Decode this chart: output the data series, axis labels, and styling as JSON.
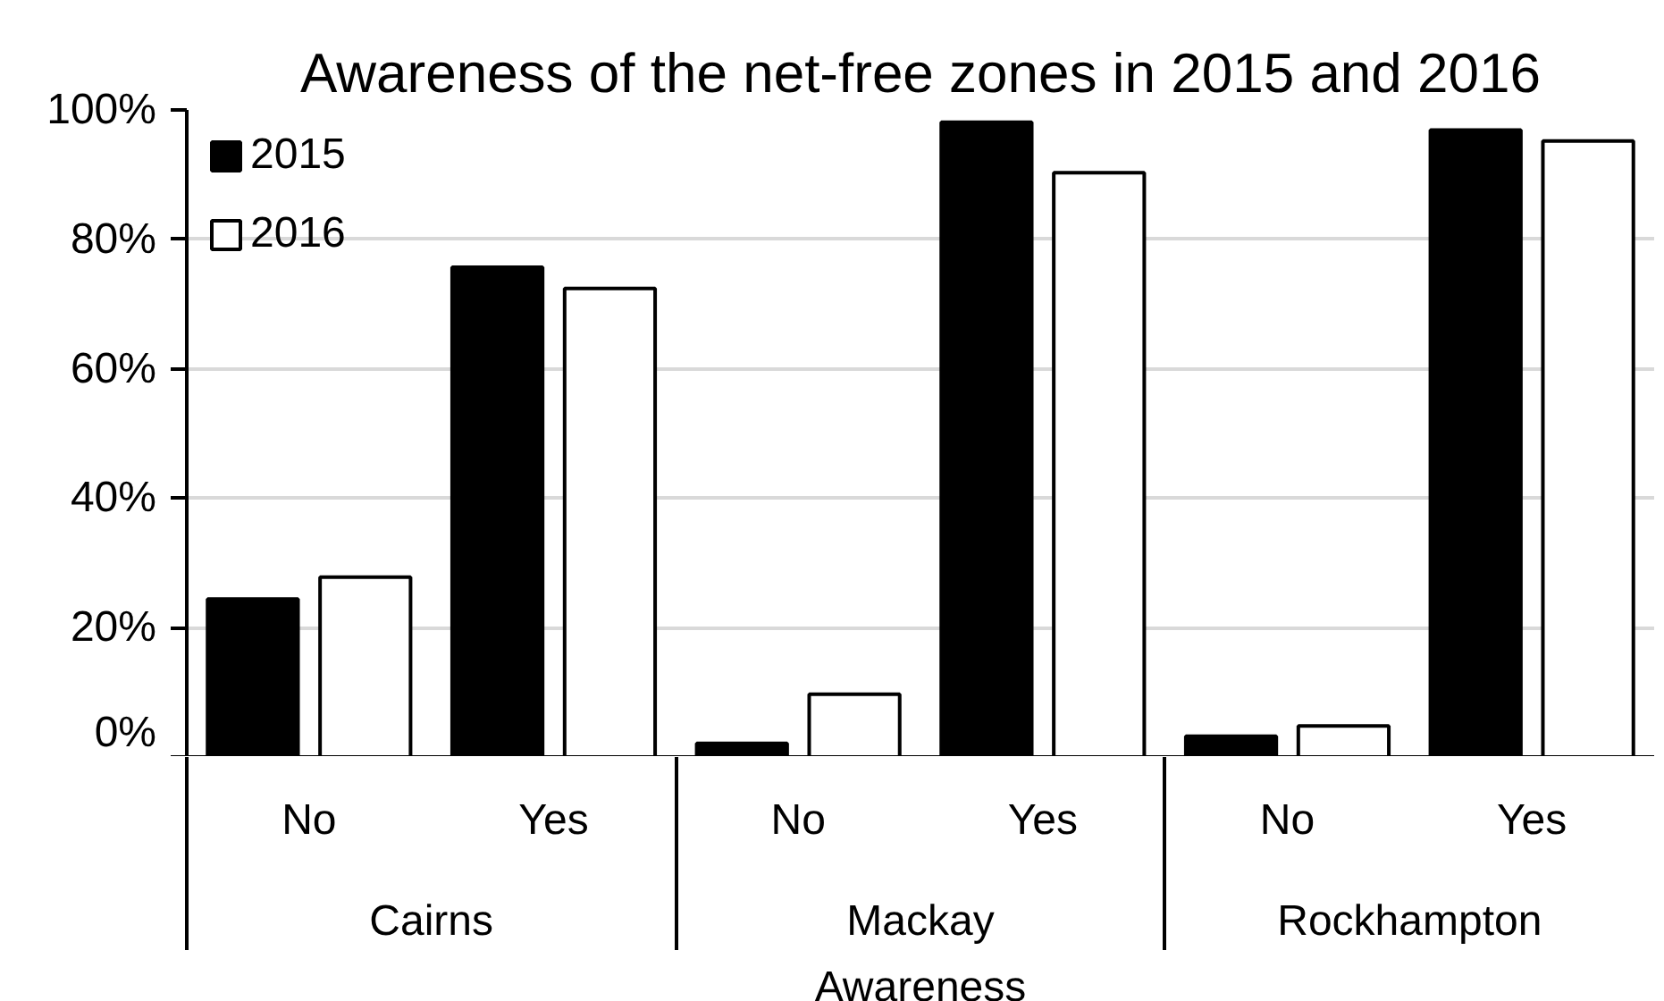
{
  "chart_data": {
    "type": "bar",
    "title": "Awareness of the net-free zones in 2015 and 2016",
    "xlabel": "Awareness",
    "categories": [
      "No",
      "Yes",
      "No",
      "Yes",
      "No",
      "Yes"
    ],
    "annotations": [
      "Cairns",
      "Mackay",
      "Rockhampton"
    ],
    "series": [
      {
        "name": "2015",
        "color": "#000000",
        "values": [
          24.4,
          75.7,
          2.1,
          98.1,
          3.2,
          96.9
        ]
      },
      {
        "name": "2016",
        "color": "#ffffff",
        "values": [
          27.8,
          72.4,
          9.7,
          90.3,
          4.8,
          95.2
        ]
      }
    ],
    "ylim": [
      0,
      100
    ],
    "yticks": [
      {
        "value": 0,
        "label": "0%"
      },
      {
        "value": 20,
        "label": "20%"
      },
      {
        "value": 40,
        "label": "40%"
      },
      {
        "value": 60,
        "label": "60%"
      },
      {
        "value": 80,
        "label": "80%"
      },
      {
        "value": 100,
        "label": "100%"
      }
    ],
    "grid": "y",
    "legend": "top left"
  }
}
